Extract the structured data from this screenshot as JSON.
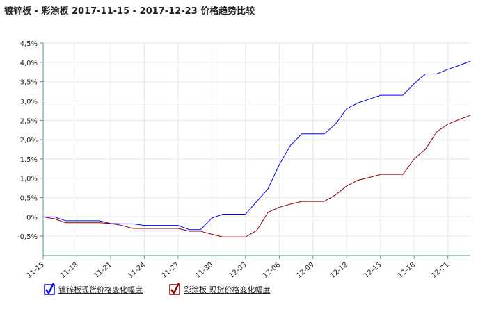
{
  "chart_data": {
    "type": "line",
    "title": "镀锌板 - 彩涂板 2017-11-15 - 2017-12-23 价格趋势比较",
    "categories": [
      "11-15",
      null,
      null,
      "11-18",
      null,
      null,
      "11-21",
      null,
      null,
      "11-24",
      null,
      null,
      "11-27",
      null,
      null,
      "11-30",
      null,
      null,
      "12-03",
      null,
      null,
      "12-06",
      null,
      null,
      "12-09",
      null,
      null,
      "12-12",
      null,
      null,
      "12-15",
      null,
      null,
      "12-18",
      null,
      null,
      "12-21",
      null,
      null
    ],
    "series": [
      {
        "name": "镀锌板现货价格变化幅度",
        "color": "#0000ff",
        "values": [
          0,
          0,
          -0.1,
          -0.1,
          -0.1,
          -0.1,
          -0.17,
          -0.18,
          -0.18,
          -0.22,
          -0.22,
          -0.22,
          -0.22,
          -0.33,
          -0.33,
          -0.03,
          0.07,
          0.07,
          0.07,
          0.4,
          0.73,
          1.35,
          1.85,
          2.15,
          2.15,
          2.15,
          2.4,
          2.8,
          2.95,
          3.05,
          3.15,
          3.15,
          3.15,
          3.45,
          3.7,
          3.7,
          3.82,
          3.92,
          4.03
        ]
      },
      {
        "name": "彩涂板 现货价格变化幅度",
        "color": "#8b0000",
        "values": [
          0,
          -0.05,
          -0.15,
          -0.15,
          -0.15,
          -0.15,
          -0.17,
          -0.22,
          -0.3,
          -0.3,
          -0.3,
          -0.3,
          -0.3,
          -0.37,
          -0.37,
          -0.45,
          -0.52,
          -0.52,
          -0.52,
          -0.35,
          0.12,
          0.25,
          0.33,
          0.4,
          0.4,
          0.4,
          0.57,
          0.8,
          0.95,
          1.02,
          1.1,
          1.1,
          1.1,
          1.5,
          1.75,
          2.2,
          2.4,
          2.52,
          2.63
        ]
      }
    ],
    "ylim": [
      -1,
      4.5
    ],
    "yticks": [
      {
        "value": 4.5,
        "label": "4,5%"
      },
      {
        "value": 4,
        "label": "4,0%"
      },
      {
        "value": 3.5,
        "label": "3,5%"
      },
      {
        "value": 3,
        "label": "3,0%"
      },
      {
        "value": 2.5,
        "label": "2,5%"
      },
      {
        "value": 2,
        "label": "2,0%"
      },
      {
        "value": 1.5,
        "label": "1,5%"
      },
      {
        "value": 1,
        "label": "1,0%"
      },
      {
        "value": 0.5,
        "label": "0,5%"
      },
      {
        "value": 0,
        "label": "0%"
      },
      {
        "value": -0.5,
        "label": "-0,5%"
      }
    ],
    "grid": true
  }
}
